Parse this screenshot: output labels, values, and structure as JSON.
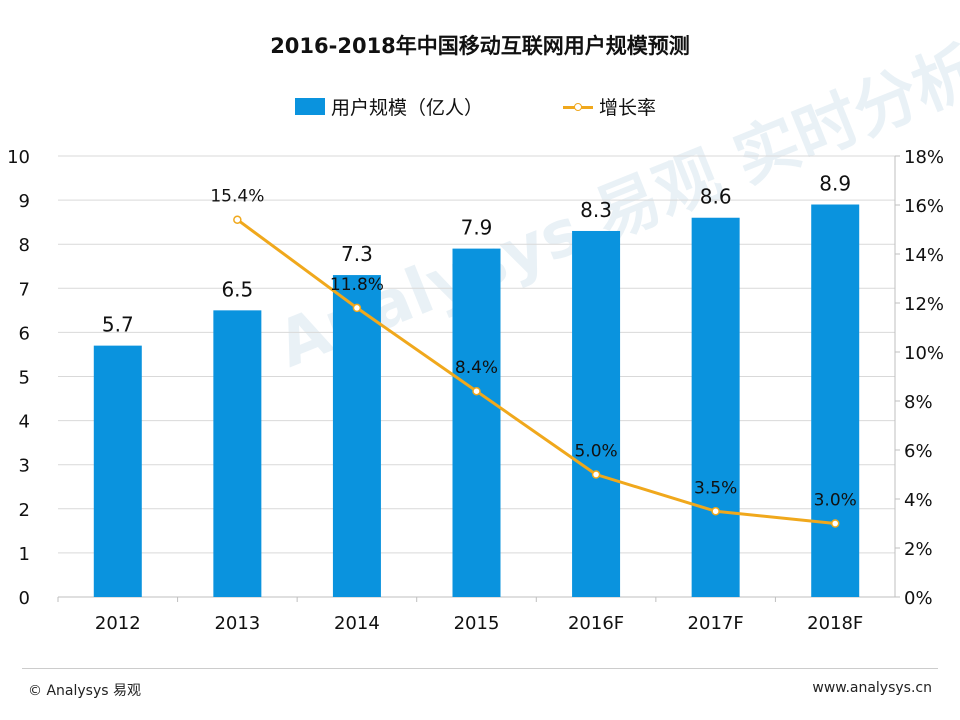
{
  "title": "2016-2018年中国移动互联网用户规模预测",
  "colors": {
    "bar": "#0a93de",
    "line": "#f0a81c",
    "axis": "#bfbfbf",
    "grid": "#d9d9d9"
  },
  "chart_data": {
    "type": "bar",
    "title": "2016-2018年中国移动互联网用户规模预测",
    "categories": [
      "2012",
      "2013",
      "2014",
      "2015",
      "2016F",
      "2017F",
      "2018F"
    ],
    "series": [
      {
        "name": "用户规模（亿人）",
        "type": "bar",
        "axis": "left",
        "values": [
          5.7,
          6.5,
          7.3,
          7.9,
          8.3,
          8.6,
          8.9
        ],
        "labels": [
          "5.7",
          "6.5",
          "7.3",
          "7.9",
          "8.3",
          "8.6",
          "8.9"
        ]
      },
      {
        "name": "增长率",
        "type": "line",
        "axis": "right",
        "values": [
          null,
          15.4,
          11.8,
          8.4,
          5.0,
          3.5,
          3.0
        ],
        "labels": [
          "",
          "15.4%",
          "11.8%",
          "8.4%",
          "5.0%",
          "3.5%",
          "3.0%"
        ]
      }
    ],
    "y_left": {
      "min": 0,
      "max": 10,
      "ticks": [
        "0",
        "1",
        "2",
        "3",
        "4",
        "5",
        "6",
        "7",
        "8",
        "9",
        "10"
      ]
    },
    "y_right": {
      "min": 0,
      "max": 18,
      "ticks": [
        "0%",
        "2%",
        "4%",
        "6%",
        "8%",
        "10%",
        "12%",
        "14%",
        "16%",
        "18%"
      ]
    },
    "grid": true,
    "legend": "top-center"
  },
  "footer": {
    "left": "© Analysys 易观",
    "right": "www.analysys.cn"
  },
  "watermark": "Analysys 易观 实时分析驱动用户资产成长"
}
